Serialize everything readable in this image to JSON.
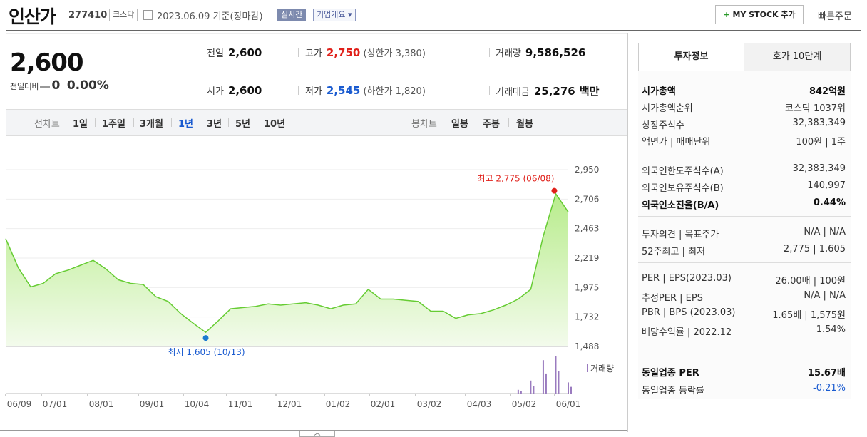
{
  "header": {
    "name": "인산가",
    "code": "277410",
    "market": "코스닥",
    "date": "2023.06.09",
    "basis": "기준(장마감)",
    "realtime": "실시간",
    "company": "기업개요",
    "mystock_plus": "+",
    "mystock": "MY STOCK 추가",
    "quick_order": "빠른주문"
  },
  "quote": {
    "price": "2,600",
    "change_label": "전일대비",
    "change_amount": "0",
    "change_pct": "0.00%",
    "prev_label": "전일",
    "prev": "2,600",
    "high_label": "고가",
    "high": "2,750",
    "upper_label": "(상한가",
    "upper": "3,380)",
    "vol_label": "거래량",
    "vol": "9,586,526",
    "open_label": "시가",
    "open": "2,600",
    "low_label": "저가",
    "low": "2,545",
    "lower_label": "(하한가",
    "lower": "1,820)",
    "amt_label": "거래대금",
    "amt": "25,276",
    "amt_unit": "백만"
  },
  "tabs": {
    "line_label": "선차트",
    "periods": [
      "1일",
      "1주일",
      "3개월",
      "1년",
      "3년",
      "5년",
      "10년"
    ],
    "active": "1년",
    "candle_label": "봉차트",
    "candles": [
      "일봉",
      "주봉",
      "월봉"
    ]
  },
  "right": {
    "tabs": [
      "투자정보",
      "호가 10단계"
    ],
    "rows": [
      [
        "시가총액",
        "842억원"
      ],
      [
        "시가총액순위",
        "코스닥 1037위"
      ],
      [
        "상장주식수",
        "32,383,349"
      ],
      [
        "액면가 | 매매단위",
        "100원 | 1주"
      ],
      [
        "외국인한도주식수(A)",
        "32,383,349"
      ],
      [
        "외국인보유주식수(B)",
        "140,997"
      ],
      [
        "외국인소진율(B/A)",
        "0.44%"
      ],
      [
        "투자의견 | 목표주가",
        "N/A | N/A"
      ],
      [
        "52주최고 | 최저",
        "2,775 | 1,605"
      ],
      [
        "PER | EPS(2023.03)",
        "26.00배 | 100원"
      ],
      [
        "추정PER | EPS",
        "N/A | N/A"
      ],
      [
        "PBR | BPS (2023.03)",
        "1.65배 | 1,575원"
      ],
      [
        "배당수익률 | 2022.12",
        "1.54%"
      ],
      [
        "동일업종 PER",
        "15.67배"
      ],
      [
        "동일업종 등락률",
        "-0.21%"
      ]
    ]
  },
  "chart_data": {
    "type": "area",
    "ylim": [
      1488,
      2950
    ],
    "yticks": [
      "2,950",
      "2,706",
      "2,463",
      "2,219",
      "1,975",
      "1,732",
      "1,488"
    ],
    "xticks": [
      "06/09",
      "07/01",
      "08/01",
      "09/01",
      "10/04",
      "11/01",
      "12/01",
      "01/02",
      "02/01",
      "03/02",
      "04/03",
      "05/02",
      "06/01"
    ],
    "x": [
      "06/09",
      "06/16",
      "06/23",
      "07/01",
      "07/08",
      "07/15",
      "07/22",
      "08/01",
      "08/08",
      "08/15",
      "08/22",
      "09/01",
      "09/08",
      "09/15",
      "09/22",
      "10/04",
      "10/13",
      "10/20",
      "10/27",
      "11/01",
      "11/10",
      "11/20",
      "12/01",
      "12/10",
      "12/20",
      "01/02",
      "01/10",
      "01/20",
      "02/01",
      "02/06",
      "02/15",
      "02/22",
      "03/02",
      "03/10",
      "03/20",
      "04/03",
      "04/10",
      "04/20",
      "05/02",
      "05/10",
      "05/20",
      "05/26",
      "06/01",
      "06/05",
      "06/08",
      "06/09"
    ],
    "values": [
      2380,
      2140,
      1980,
      2010,
      2090,
      2120,
      2160,
      2200,
      2130,
      2040,
      2010,
      2000,
      1900,
      1860,
      1760,
      1680,
      1605,
      1700,
      1800,
      1810,
      1820,
      1840,
      1830,
      1840,
      1850,
      1830,
      1800,
      1830,
      1840,
      1960,
      1880,
      1880,
      1870,
      1860,
      1780,
      1780,
      1720,
      1750,
      1760,
      1790,
      1830,
      1880,
      1960,
      2400,
      2750,
      2600
    ],
    "max_label": "최고 2,775 (06/08)",
    "min_label": "최저 1,605 (10/13)",
    "vol_label": "거래량",
    "volume": [
      0,
      0,
      0,
      0,
      0,
      0,
      0,
      0,
      0,
      0,
      0,
      0,
      0,
      0,
      0,
      0,
      0,
      0,
      0,
      0,
      0,
      0,
      0,
      0,
      0,
      0,
      0,
      0,
      0,
      0,
      0,
      0,
      0,
      0,
      0,
      0,
      0,
      0,
      0,
      0,
      0,
      0.1,
      0.35,
      0.9,
      1.0,
      0.3
    ],
    "color": "#66cc33"
  }
}
